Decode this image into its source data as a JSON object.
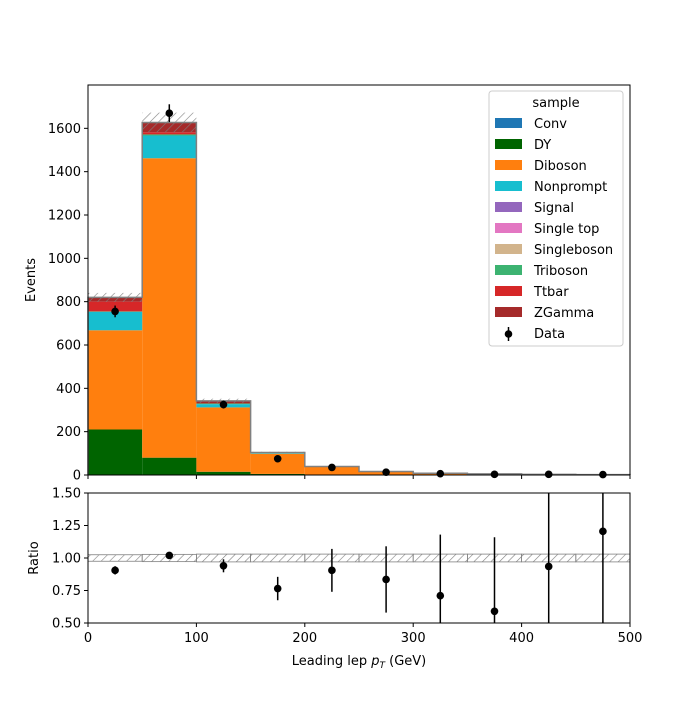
{
  "chart_data": [
    {
      "type": "bar",
      "subtype": "stacked-histogram",
      "title": "",
      "xlabel": "Leading lep",
      "xlabel_symbol": "p",
      "xlabel_subscript": "T",
      "xlabel_unit": "(GeV)",
      "ylabel": "Events",
      "xlim": [
        0,
        500
      ],
      "ylim": [
        0,
        1800
      ],
      "bin_edges": [
        0,
        50,
        100,
        150,
        200,
        250,
        300,
        350,
        400,
        450,
        500
      ],
      "x_ticks": [
        "0",
        "100",
        "200",
        "300",
        "400",
        "500"
      ],
      "y_ticks": [
        "0",
        "200",
        "400",
        "600",
        "800",
        "1000",
        "1200",
        "1400",
        "1600"
      ],
      "legend": {
        "title": "sample",
        "placement": "top-right",
        "data_label": "Data"
      },
      "series": [
        {
          "name": "Conv",
          "color": "#1f77b4",
          "values": [
            0,
            0,
            0,
            0,
            0,
            0,
            0,
            0,
            0,
            0
          ]
        },
        {
          "name": "DY",
          "color": "#006400",
          "values": [
            210,
            80,
            15,
            5,
            2,
            1,
            0,
            0,
            0,
            0
          ]
        },
        {
          "name": "Diboson",
          "color": "#ff7f0e",
          "values": [
            458,
            1382,
            297,
            93,
            35,
            15,
            8,
            5,
            3,
            2
          ]
        },
        {
          "name": "Nonprompt",
          "color": "#17becf",
          "values": [
            85,
            105,
            15,
            3,
            1,
            0,
            0,
            0,
            0,
            0
          ]
        },
        {
          "name": "Signal",
          "color": "#9467bd",
          "values": [
            0,
            0,
            0,
            0,
            0,
            0,
            0,
            0,
            0,
            0
          ]
        },
        {
          "name": "Single top",
          "color": "#e377c2",
          "values": [
            0,
            0,
            0,
            0,
            0,
            0,
            0,
            0,
            0,
            0
          ]
        },
        {
          "name": "Singleboson",
          "color": "#d2b48c",
          "values": [
            0,
            0,
            0,
            0,
            0,
            0,
            0,
            0,
            0,
            0
          ]
        },
        {
          "name": "Triboson",
          "color": "#3cb371",
          "values": [
            2,
            5,
            3,
            1,
            0,
            0,
            0,
            0,
            0,
            0
          ]
        },
        {
          "name": "Ttbar",
          "color": "#d62728",
          "values": [
            45,
            10,
            2,
            0,
            0,
            0,
            0,
            0,
            0,
            0
          ]
        },
        {
          "name": "ZGamma",
          "color": "#a52a2a",
          "values": [
            20,
            45,
            10,
            2,
            1,
            0,
            0,
            0,
            0,
            0
          ]
        }
      ],
      "uncertainty_frac": [
        0.025,
        0.028,
        0.03,
        0.03,
        0.03,
        0.03,
        0.03,
        0.03,
        0.03,
        0.03
      ],
      "data": {
        "name": "Data",
        "x": [
          25,
          75,
          125,
          175,
          225,
          275,
          325,
          375,
          425,
          475
        ],
        "y": [
          755,
          1670,
          325,
          75,
          35,
          13,
          6,
          3,
          3,
          2
        ],
        "yerr": [
          27,
          41,
          18,
          9,
          6,
          3.6,
          2.4,
          1.7,
          1.7,
          1.4
        ]
      },
      "colors": {
        "data": "#000000",
        "band_edge": "#808080",
        "outline": "#808080"
      }
    },
    {
      "type": "scatter",
      "subtype": "ratio",
      "xlabel": "",
      "ylabel": "Ratio",
      "xlim": [
        0,
        500
      ],
      "ylim": [
        0.5,
        1.5
      ],
      "x_ticks": [
        "0",
        "100",
        "200",
        "300",
        "400",
        "500"
      ],
      "y_ticks": [
        "0.50",
        "0.75",
        "1.00",
        "1.25",
        "1.50"
      ],
      "x": [
        25,
        75,
        125,
        175,
        225,
        275,
        325,
        375,
        425,
        475
      ],
      "y": [
        0.905,
        1.02,
        0.94,
        0.765,
        0.905,
        0.835,
        0.71,
        0.59,
        0.935,
        1.205
      ],
      "yerr": [
        0.032,
        0.025,
        0.05,
        0.09,
        0.165,
        0.255,
        0.47,
        0.57,
        0.95,
        1.0
      ],
      "band_frac": [
        0.025,
        0.028,
        0.03,
        0.03,
        0.03,
        0.03,
        0.03,
        0.03,
        0.03,
        0.03
      ]
    }
  ]
}
